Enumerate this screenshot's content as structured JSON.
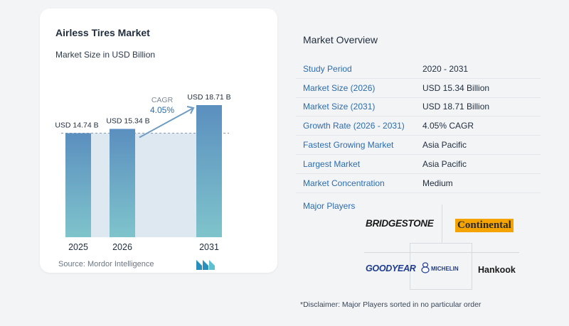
{
  "chart_data": {
    "type": "bar",
    "title": "Airless Tires Market",
    "subtitle": "Market Size in USD Billion",
    "categories": [
      "2025",
      "2026",
      "2031"
    ],
    "values": [
      14.74,
      15.34,
      18.71
    ],
    "value_labels": [
      "USD 14.74 B",
      "USD 15.34 B",
      "USD 18.71 B"
    ],
    "cagr_label": "CAGR",
    "cagr_value": "4.05%",
    "source": "Source: Mordor Intelligence",
    "bar_color_top": "#5b8fbf",
    "bar_color_bottom": "#7fc4cc",
    "band_color": "#dde8f1"
  },
  "overview": {
    "title": "Market Overview",
    "rows": [
      {
        "label": "Study Period",
        "value": "2020 - 2031"
      },
      {
        "label": "Market Size (2026)",
        "value": "USD 15.34 Billion"
      },
      {
        "label": "Market Size (2031)",
        "value": "USD 18.71 Billion"
      },
      {
        "label": "Growth Rate (2026 - 2031)",
        "value": "4.05% CAGR"
      },
      {
        "label": "Fastest Growing Market",
        "value": "Asia Pacific"
      },
      {
        "label": "Largest Market",
        "value": "Asia Pacific"
      },
      {
        "label": "Market Concentration",
        "value": "Medium"
      }
    ]
  },
  "players": {
    "title": "Major Players",
    "logos": [
      "BRIDGESTONE",
      "Continental",
      "GOODYEAR",
      "MICHELIN",
      "Hankook"
    ]
  },
  "disclaimer": "*Disclaimer: Major Players sorted in no particular order"
}
